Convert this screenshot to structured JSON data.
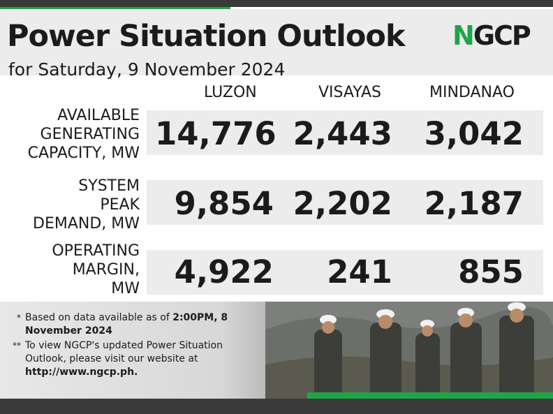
{
  "header": {
    "title": "Power Situation Outlook",
    "subtitle": "for Saturday, 9 November 2024",
    "logo_text": "NGCP",
    "logo_first_letter": "N",
    "logo_rest": "GCP"
  },
  "colors": {
    "accent_green": "#1ea54a",
    "dark": "#3a3a3a",
    "band": "#ececec"
  },
  "columns": [
    "LUZON",
    "VISAYAS",
    "MINDANAO"
  ],
  "rows": [
    {
      "label": "AVAILABLE\nGENERATING\nCAPACITY, MW",
      "values": [
        "14,776",
        "2,443",
        "3,042"
      ]
    },
    {
      "label": "SYSTEM\nPEAK\nDEMAND, MW",
      "values": [
        "9,854",
        "2,202",
        "2,187"
      ]
    },
    {
      "label": "OPERATING\nMARGIN,\nMW",
      "values": [
        "4,922",
        "241",
        "855"
      ]
    }
  ],
  "notes": {
    "note1_marker": "*",
    "note1_text": "Based on data available as of ",
    "note1_bold": "2:00PM, 8 November 2024",
    "note2_marker": "**",
    "note2_text": "To view NGCP's updated Power Situation Outlook, please visit our website at ",
    "note2_bold": "http://www.ngcp.ph."
  }
}
